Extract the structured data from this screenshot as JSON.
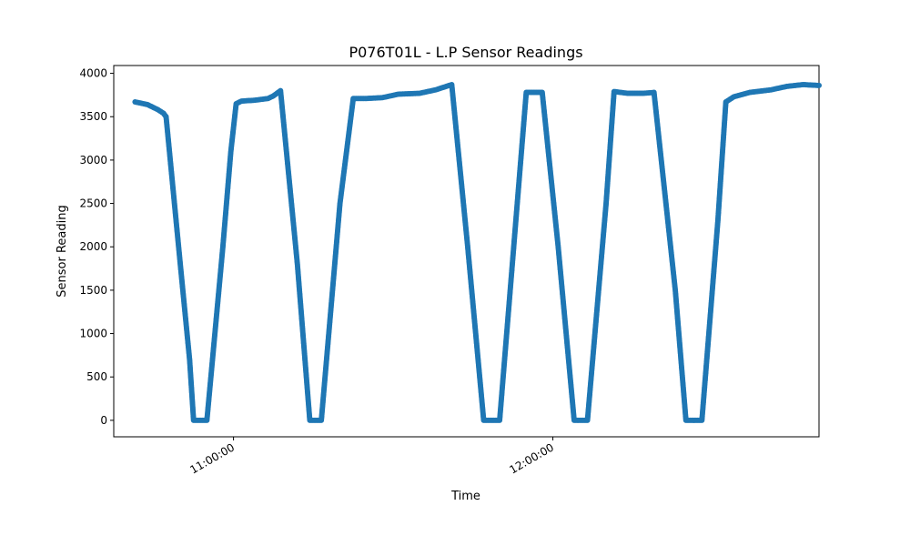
{
  "chart_data": {
    "type": "scatter",
    "title": "P076T01L - L.P Sensor Readings",
    "xlabel": "Time",
    "ylabel": "Sensor Reading",
    "x_unit": "time",
    "xlim": [
      "10:37:30",
      "12:50:00"
    ],
    "ylim": [
      -190,
      4090
    ],
    "xticks": [
      "11:00:00",
      "12:00:00"
    ],
    "yticks": [
      0,
      500,
      1000,
      1500,
      2000,
      2500,
      3000,
      3500,
      4000
    ],
    "grid": false,
    "legend": "none",
    "series": [
      {
        "color": "#1f77b4",
        "points": [
          [
            "10:41:30",
            3670
          ],
          [
            "10:43:50",
            3640
          ],
          [
            "10:44:50",
            3610
          ],
          [
            "10:45:50",
            3580
          ],
          [
            "10:46:50",
            3540
          ],
          [
            "10:47:20",
            3500
          ],
          [
            "10:50:00",
            1800
          ],
          [
            "10:51:45",
            700
          ],
          [
            "10:52:30",
            0
          ],
          [
            "10:55:00",
            0
          ],
          [
            "10:58:00",
            2000
          ],
          [
            "10:59:30",
            3100
          ],
          [
            "11:00:30",
            3650
          ],
          [
            "11:01:30",
            3680
          ],
          [
            "11:04:00",
            3690
          ],
          [
            "11:06:30",
            3710
          ],
          [
            "11:07:30",
            3740
          ],
          [
            "11:08:50",
            3800
          ],
          [
            "11:12:00",
            1800
          ],
          [
            "11:14:20",
            0
          ],
          [
            "11:16:30",
            0
          ],
          [
            "11:20:00",
            2500
          ],
          [
            "11:22:30",
            3710
          ],
          [
            "11:25:00",
            3710
          ],
          [
            "11:28:00",
            3720
          ],
          [
            "11:31:00",
            3760
          ],
          [
            "11:35:00",
            3770
          ],
          [
            "11:38:00",
            3810
          ],
          [
            "11:41:00",
            3870
          ],
          [
            "11:44:00",
            2000
          ],
          [
            "11:47:00",
            0
          ],
          [
            "11:50:00",
            0
          ],
          [
            "11:55:00",
            3780
          ],
          [
            "11:58:00",
            3780
          ],
          [
            "12:01:00",
            2000
          ],
          [
            "12:04:00",
            0
          ],
          [
            "12:06:30",
            0
          ],
          [
            "12:10:00",
            2500
          ],
          [
            "12:11:30",
            3790
          ],
          [
            "12:14:00",
            3770
          ],
          [
            "12:17:00",
            3770
          ],
          [
            "12:19:00",
            3780
          ],
          [
            "12:23:00",
            1500
          ],
          [
            "12:25:00",
            0
          ],
          [
            "12:28:00",
            0
          ],
          [
            "12:31:00",
            2300
          ],
          [
            "12:32:30",
            3670
          ],
          [
            "12:34:00",
            3730
          ],
          [
            "12:37:00",
            3780
          ],
          [
            "12:41:00",
            3810
          ],
          [
            "12:44:00",
            3850
          ],
          [
            "12:47:00",
            3870
          ],
          [
            "12:50:00",
            3860
          ]
        ]
      }
    ]
  }
}
